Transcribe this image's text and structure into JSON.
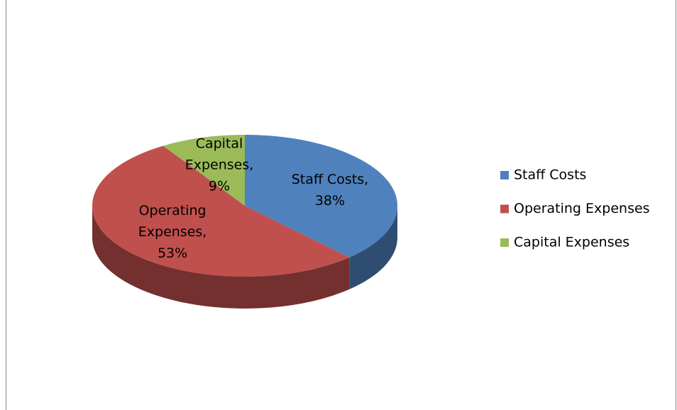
{
  "chart_data": {
    "type": "pie",
    "categories": [
      "Staff Costs",
      "Operating Expenses",
      "Capital Expenses"
    ],
    "values": [
      38,
      53,
      9
    ],
    "value_labels": [
      "Staff Costs,\n38%",
      "Operating\nExpenses,\n53%",
      "Capital\nExpenses,\n9%"
    ],
    "colors": [
      "#4f81bd",
      "#c0504d",
      "#9bbb59"
    ],
    "legend": "right"
  }
}
